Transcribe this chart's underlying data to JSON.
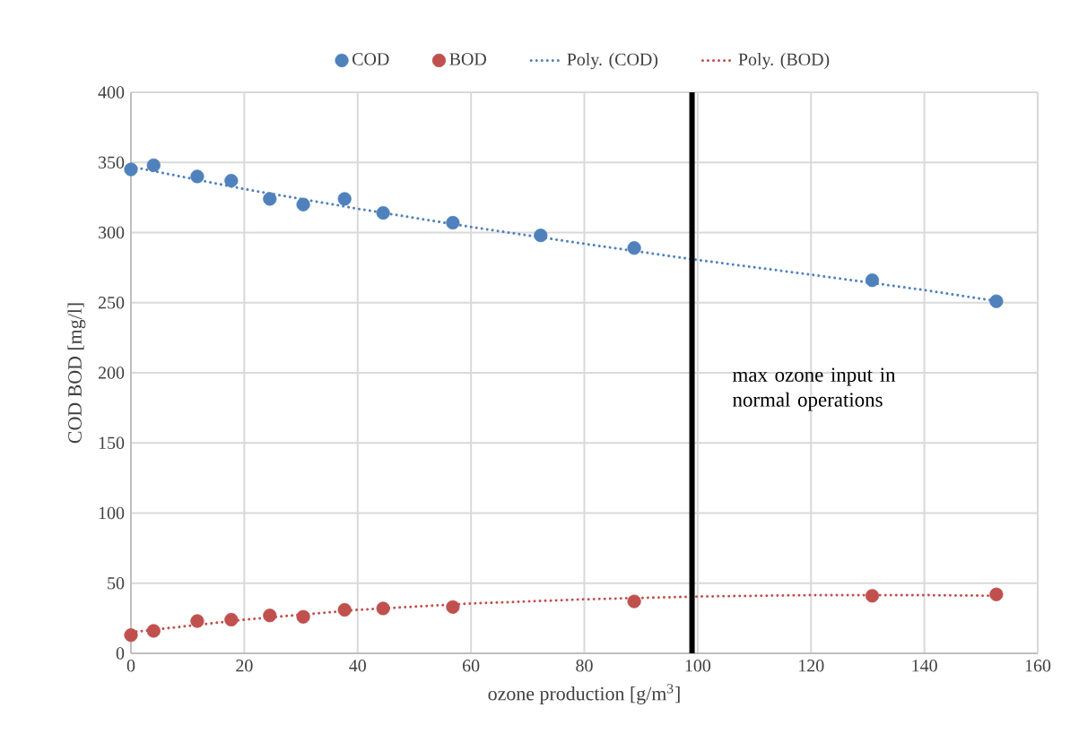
{
  "chart_data": {
    "type": "scatter",
    "xlabel": "ozone production [g/m$^{3}$]",
    "ylabel": "COD BOD [mg/l]",
    "xlim": [
      0,
      160
    ],
    "ylim": [
      0,
      400
    ],
    "xticks": [
      0,
      20,
      40,
      60,
      80,
      100,
      120,
      140,
      160
    ],
    "yticks": [
      0,
      50,
      100,
      150,
      200,
      250,
      300,
      350,
      400
    ],
    "grid": true,
    "legend": "top",
    "marker": "circle",
    "series": [
      {
        "name": "COD",
        "color": "#4f81bd",
        "x": [
          0,
          4,
          11.7,
          17.7,
          24.5,
          30.4,
          37.7,
          44.5,
          56.8,
          72.3,
          88.8,
          130.8,
          152.7
        ],
        "values": [
          345,
          348,
          340,
          337,
          324,
          320,
          324,
          314,
          307,
          298,
          289,
          266,
          251
        ]
      },
      {
        "name": "BOD",
        "color": "#c0504d",
        "x": [
          0,
          4,
          11.7,
          17.7,
          24.5,
          30.4,
          37.7,
          44.5,
          56.8,
          88.8,
          130.8,
          152.7
        ],
        "values": [
          13,
          16,
          23,
          24,
          27,
          26,
          31,
          32,
          33,
          37,
          41,
          42
        ]
      },
      {
        "name": "Poly. (COD)",
        "type": "line",
        "line_style": "dotted",
        "marker": "none",
        "color": "#4f81bd",
        "x": [
          0,
          20,
          40,
          60,
          80,
          99,
          120,
          140,
          153
        ],
        "values": [
          347,
          331,
          317,
          304,
          292,
          281,
          270,
          259,
          251
        ]
      },
      {
        "name": "Poly. (BOD)",
        "type": "line",
        "line_style": "dotted",
        "marker": "none",
        "color": "#c0504d",
        "x": [
          0,
          20,
          40,
          60,
          80,
          100,
          120,
          140,
          153
        ],
        "values": [
          15,
          24,
          31,
          35.5,
          38.5,
          40.5,
          41.5,
          41.5,
          41
        ]
      }
    ],
    "ref_lines": [
      {
        "axis": "x",
        "value": 99,
        "color": "#000000",
        "label": "max ozone input in normal operations"
      }
    ]
  }
}
